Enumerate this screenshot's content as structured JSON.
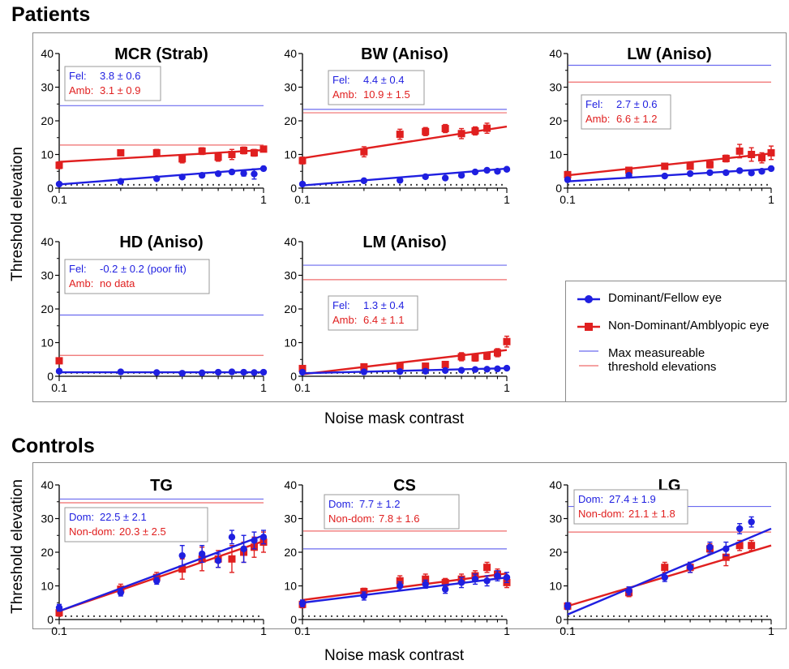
{
  "sections": {
    "patients_title": "Patients",
    "controls_title": "Controls",
    "ylabel": "Threshold elevation",
    "xlabel": "Noise mask contrast"
  },
  "legend": {
    "dominant": "Dominant/Fellow eye",
    "nondominant": "Non-Dominant/Amblyopic eye",
    "max_line1": "Max measureable",
    "max_line2": "threshold elevations",
    "colors": {
      "blue": "#1f1fe0",
      "red": "#e01f1f",
      "blue_line": "#6b6bef",
      "red_line": "#ef6b6b"
    }
  },
  "chart_data": [
    {
      "id": "MCR",
      "group": "Patients",
      "type": "scatter",
      "title": "MCR (Strab)",
      "xscale": "log",
      "xlim": [
        0.1,
        1
      ],
      "ylim": [
        0,
        40
      ],
      "xticks": [
        "0.1",
        "1"
      ],
      "yticks": [
        "0",
        "10",
        "20",
        "30",
        "40"
      ],
      "annotation": [
        {
          "label": "Fel:",
          "value": "3.8 ± 0.6"
        },
        {
          "label": "Amb:",
          "value": "3.1 ± 0.9"
        }
      ],
      "max_blue": 24.5,
      "max_red": 12.8,
      "series": [
        {
          "name": "Dominant/Fellow eye",
          "x": [
            0.1,
            0.2,
            0.3,
            0.4,
            0.5,
            0.6,
            0.7,
            0.8,
            0.9,
            1.0
          ],
          "y": [
            1.2,
            2.0,
            2.8,
            3.3,
            3.8,
            4.3,
            4.8,
            4.4,
            4.2,
            5.8
          ],
          "err": [
            0.3,
            0.4,
            0.4,
            0.5,
            0.5,
            0.5,
            0.6,
            0.8,
            1.5,
            0.6
          ],
          "fit": [
            1.1,
            5.8
          ]
        },
        {
          "name": "Non-Dominant/Amblyopic eye",
          "x": [
            0.1,
            0.2,
            0.3,
            0.4,
            0.5,
            0.6,
            0.7,
            0.8,
            0.9,
            1.0
          ],
          "y": [
            6.8,
            10.5,
            10.5,
            8.7,
            11.0,
            9.2,
            10.0,
            11.2,
            10.5,
            11.6
          ],
          "err": [
            1.0,
            0.8,
            1.0,
            1.2,
            1.0,
            1.2,
            1.5,
            1.0,
            1.0,
            0.8
          ],
          "fit": [
            7.8,
            11.3
          ]
        }
      ]
    },
    {
      "id": "BW",
      "group": "Patients",
      "type": "scatter",
      "title": "BW (Aniso)",
      "xscale": "log",
      "xlim": [
        0.1,
        1
      ],
      "ylim": [
        0,
        40
      ],
      "xticks": [
        "0.1",
        "1"
      ],
      "yticks": [
        "0",
        "10",
        "20",
        "30",
        "40"
      ],
      "annotation": [
        {
          "label": "Fel:",
          "value": "4.4 ± 0.4"
        },
        {
          "label": "Amb:",
          "value": "10.9 ± 1.5"
        }
      ],
      "max_blue": 23.4,
      "max_red": 22.4,
      "series": [
        {
          "name": "Dominant/Fellow eye",
          "x": [
            0.1,
            0.2,
            0.3,
            0.4,
            0.5,
            0.6,
            0.7,
            0.8,
            0.9,
            1.0
          ],
          "y": [
            1.2,
            2.2,
            2.3,
            3.4,
            3.0,
            3.8,
            4.8,
            5.3,
            5.0,
            5.6
          ],
          "err": [
            0.3,
            0.3,
            0.3,
            0.4,
            0.4,
            0.4,
            0.5,
            0.5,
            0.5,
            0.5
          ],
          "fit": [
            0.8,
            5.8
          ]
        },
        {
          "name": "Non-Dominant/Amblyopic eye",
          "x": [
            0.1,
            0.2,
            0.3,
            0.4,
            0.5,
            0.6,
            0.7,
            0.8
          ],
          "y": [
            8.2,
            10.8,
            16.0,
            16.8,
            17.7,
            16.2,
            17.0,
            17.8
          ],
          "err": [
            1.0,
            1.5,
            1.5,
            1.2,
            1.2,
            1.5,
            1.2,
            1.5
          ],
          "fit": [
            8.9,
            18.3
          ]
        }
      ]
    },
    {
      "id": "LW",
      "group": "Patients",
      "type": "scatter",
      "title": "LW (Aniso)",
      "xscale": "log",
      "xlim": [
        0.1,
        1
      ],
      "ylim": [
        0,
        40
      ],
      "xticks": [
        "0.1",
        "1"
      ],
      "yticks": [
        "0",
        "10",
        "20",
        "30",
        "40"
      ],
      "annotation": [
        {
          "label": "Fel:",
          "value": "2.7 ± 0.6"
        },
        {
          "label": "Amb:",
          "value": "6.6 ± 1.2"
        }
      ],
      "max_blue": 36.5,
      "max_red": 31.5,
      "series": [
        {
          "name": "Dominant/Fellow eye",
          "x": [
            0.1,
            0.2,
            0.3,
            0.4,
            0.5,
            0.6,
            0.7,
            0.8,
            0.9,
            1.0
          ],
          "y": [
            2.5,
            3.8,
            3.6,
            4.3,
            4.6,
            4.6,
            5.2,
            4.5,
            5.0,
            5.8
          ],
          "err": [
            0.4,
            0.5,
            0.5,
            0.5,
            0.6,
            0.6,
            0.6,
            0.6,
            0.6,
            0.6
          ],
          "fit": [
            2.0,
            5.7
          ]
        },
        {
          "name": "Non-Dominant/Amblyopic eye",
          "x": [
            0.1,
            0.2,
            0.3,
            0.4,
            0.5,
            0.6,
            0.7,
            0.8,
            0.9,
            1.0
          ],
          "y": [
            4.0,
            5.3,
            6.5,
            6.5,
            7.0,
            8.8,
            11.0,
            10.0,
            9.0,
            10.5
          ],
          "err": [
            0.8,
            0.8,
            0.8,
            0.8,
            1.0,
            1.0,
            2.0,
            2.0,
            1.5,
            2.0
          ],
          "fit": [
            3.8,
            10.3
          ]
        }
      ]
    },
    {
      "id": "HD",
      "group": "Patients",
      "type": "scatter",
      "title": "HD (Aniso)",
      "xscale": "log",
      "xlim": [
        0.1,
        1
      ],
      "ylim": [
        0,
        40
      ],
      "xticks": [
        "0.1",
        "1"
      ],
      "yticks": [
        "0",
        "10",
        "20",
        "30",
        "40"
      ],
      "annotation": [
        {
          "label": "Fel:",
          "value": "-0.2 ± 0.2 (poor fit)"
        },
        {
          "label": "Amb:",
          "value": "no data"
        }
      ],
      "max_blue": 18.2,
      "max_red": 6.2,
      "series": [
        {
          "name": "Dominant/Fellow eye",
          "x": [
            0.1,
            0.2,
            0.3,
            0.4,
            0.5,
            0.6,
            0.7,
            0.8,
            0.9,
            1.0
          ],
          "y": [
            1.5,
            1.3,
            1.1,
            0.9,
            1.0,
            1.2,
            1.3,
            1.2,
            1.1,
            1.2
          ],
          "err": [
            0.2,
            0.2,
            0.2,
            0.2,
            0.2,
            0.2,
            0.2,
            0.2,
            0.2,
            0.2
          ],
          "fit": [
            1.2,
            1.2
          ]
        },
        {
          "name": "Non-Dominant/Amblyopic eye",
          "x": [
            0.1
          ],
          "y": [
            4.6
          ],
          "err": [
            0.5
          ],
          "fit": null
        }
      ]
    },
    {
      "id": "LM",
      "group": "Patients",
      "type": "scatter",
      "title": "LM (Aniso)",
      "xscale": "log",
      "xlim": [
        0.1,
        1
      ],
      "ylim": [
        0,
        40
      ],
      "xticks": [
        "0.1",
        "1"
      ],
      "yticks": [
        "0",
        "10",
        "20",
        "30",
        "40"
      ],
      "annotation": [
        {
          "label": "Fel:",
          "value": "1.3 ± 0.4"
        },
        {
          "label": "Amb:",
          "value": "6.4 ± 1.1"
        }
      ],
      "max_blue": 33.0,
      "max_red": 28.7,
      "series": [
        {
          "name": "Dominant/Fellow eye",
          "x": [
            0.1,
            0.2,
            0.3,
            0.4,
            0.5,
            0.6,
            0.7,
            0.8,
            0.9,
            1.0
          ],
          "y": [
            1.2,
            1.3,
            1.4,
            1.5,
            1.7,
            1.8,
            2.0,
            2.1,
            2.2,
            2.4
          ],
          "err": [
            0.2,
            0.2,
            0.2,
            0.3,
            0.3,
            0.3,
            0.3,
            0.3,
            0.3,
            0.3
          ],
          "fit": [
            0.9,
            2.4
          ]
        },
        {
          "name": "Non-Dominant/Amblyopic eye",
          "x": [
            0.1,
            0.2,
            0.3,
            0.4,
            0.5,
            0.6,
            0.7,
            0.8,
            0.9,
            1.0
          ],
          "y": [
            2.3,
            2.8,
            3.1,
            3.0,
            3.5,
            5.8,
            5.5,
            6.0,
            7.0,
            10.3
          ],
          "err": [
            0.5,
            0.5,
            0.5,
            0.5,
            0.8,
            1.2,
            1.0,
            1.0,
            1.2,
            1.6
          ],
          "fit": [
            0.6,
            7.8
          ]
        }
      ]
    },
    {
      "id": "TG",
      "group": "Controls",
      "type": "scatter",
      "title": "TG",
      "xscale": "log",
      "xlim": [
        0.1,
        1
      ],
      "ylim": [
        0,
        40
      ],
      "xticks": [
        "0.1",
        "1"
      ],
      "yticks": [
        "0",
        "10",
        "20",
        "30",
        "40"
      ],
      "annotation": [
        {
          "label": "Dom:",
          "value": "22.5 ± 2.1"
        },
        {
          "label": "Non-dom:",
          "value": "20.3 ± 2.5"
        }
      ],
      "max_blue": 35.8,
      "max_red": 34.7,
      "series": [
        {
          "name": "Dominant/Fellow eye",
          "x": [
            0.1,
            0.2,
            0.3,
            0.4,
            0.5,
            0.6,
            0.7,
            0.8,
            0.9,
            1.0
          ],
          "y": [
            3.5,
            8.0,
            11.5,
            19.0,
            19.5,
            17.5,
            24.5,
            21.0,
            23.5,
            24.5
          ],
          "err": [
            1.0,
            1.0,
            1.0,
            3.0,
            2.5,
            2.0,
            2.0,
            4.0,
            2.5,
            2.0
          ],
          "fit": [
            2.5,
            25.0
          ]
        },
        {
          "name": "Non-Dominant/Amblyopic eye",
          "x": [
            0.1,
            0.2,
            0.3,
            0.4,
            0.5,
            0.6,
            0.7,
            0.8,
            0.9,
            1.0
          ],
          "y": [
            2.0,
            9.0,
            12.5,
            15.0,
            18.0,
            18.0,
            18.0,
            20.0,
            21.5,
            23.0
          ],
          "err": [
            1.0,
            1.5,
            1.5,
            3.0,
            3.5,
            2.5,
            4.0,
            3.0,
            3.0,
            3.0
          ],
          "fit": [
            2.5,
            23.3
          ]
        }
      ]
    },
    {
      "id": "CS",
      "group": "Controls",
      "type": "scatter",
      "title": "CS",
      "xscale": "log",
      "xlim": [
        0.1,
        1
      ],
      "ylim": [
        0,
        40
      ],
      "xticks": [
        "0.1",
        "1"
      ],
      "yticks": [
        "0",
        "10",
        "20",
        "30",
        "40"
      ],
      "annotation": [
        {
          "label": "Dom:",
          "value": "7.7 ± 1.2"
        },
        {
          "label": "Non-dom:",
          "value": "7.8 ± 1.6"
        }
      ],
      "max_blue": 21.0,
      "max_red": 26.3,
      "series": [
        {
          "name": "Dominant/Fellow eye",
          "x": [
            0.1,
            0.2,
            0.3,
            0.4,
            0.5,
            0.6,
            0.7,
            0.8,
            0.9,
            1.0
          ],
          "y": [
            4.8,
            7.0,
            10.0,
            10.5,
            9.0,
            11.0,
            12.0,
            11.5,
            13.0,
            12.5
          ],
          "err": [
            1.0,
            1.2,
            1.2,
            1.2,
            1.2,
            1.5,
            1.5,
            1.5,
            1.5,
            1.5
          ],
          "fit": [
            5.0,
            12.5
          ]
        },
        {
          "name": "Non-Dominant/Amblyopic eye",
          "x": [
            0.1,
            0.2,
            0.3,
            0.4,
            0.5,
            0.6,
            0.7,
            0.8,
            0.9,
            1.0
          ],
          "y": [
            4.5,
            8.3,
            11.5,
            12.0,
            11.0,
            12.0,
            13.0,
            15.5,
            13.5,
            11.0
          ],
          "err": [
            1.0,
            1.0,
            1.5,
            1.5,
            1.2,
            1.5,
            1.5,
            1.5,
            1.5,
            1.5
          ],
          "fit": [
            5.8,
            13.7
          ]
        }
      ]
    },
    {
      "id": "LG",
      "group": "Controls",
      "type": "scatter",
      "title": "LG",
      "xscale": "log",
      "xlim": [
        0.1,
        1
      ],
      "ylim": [
        0,
        40
      ],
      "xticks": [
        "0.1",
        "1"
      ],
      "yticks": [
        "0",
        "10",
        "20",
        "30",
        "40"
      ],
      "annotation": [
        {
          "label": "Dom:",
          "value": "27.4 ± 1.9"
        },
        {
          "label": "Non-dom:",
          "value": "21.1 ± 1.8"
        }
      ],
      "max_blue": 33.6,
      "max_red": 26.0,
      "series": [
        {
          "name": "Dominant/Fellow eye",
          "x": [
            0.1,
            0.2,
            0.3,
            0.4,
            0.5,
            0.6,
            0.7,
            0.8
          ],
          "y": [
            4.0,
            8.5,
            12.5,
            15.5,
            21.5,
            21.0,
            27.0,
            29.0
          ],
          "err": [
            1.0,
            1.2,
            1.2,
            1.5,
            1.5,
            2.0,
            1.5,
            1.5
          ],
          "fit": [
            1.5,
            27.0
          ]
        },
        {
          "name": "Non-Dominant/Amblyopic eye",
          "x": [
            0.1,
            0.2,
            0.3,
            0.4,
            0.5,
            0.6,
            0.7,
            0.8
          ],
          "y": [
            4.0,
            8.0,
            15.5,
            15.5,
            21.0,
            18.5,
            22.0,
            22.0
          ],
          "err": [
            1.0,
            1.2,
            1.5,
            1.5,
            1.5,
            2.5,
            1.5,
            1.5
          ],
          "fit": [
            4.0,
            22.0
          ]
        }
      ]
    }
  ]
}
